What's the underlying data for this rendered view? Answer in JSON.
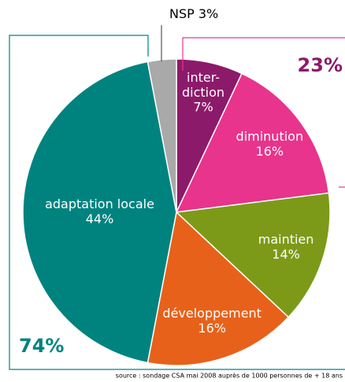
{
  "chart_data": {
    "type": "pie",
    "categories": [
      "inter-diction",
      "diminution",
      "maintien",
      "développement",
      "adaptation locale",
      "NSP"
    ],
    "values": [
      7,
      16,
      14,
      16,
      44,
      3
    ],
    "value_labels": [
      "7%",
      "16%",
      "14%",
      "16%",
      "44%",
      "3%"
    ],
    "colors": [
      "#8c1a6a",
      "#e8348c",
      "#7c9a18",
      "#e8611a",
      "#00837f",
      "#a9a9a9"
    ],
    "annotations": [
      "74%",
      "23%"
    ],
    "source": "source : sondage CSA mai 2008 auprès de 1000 personnes de + 18 ans"
  }
}
